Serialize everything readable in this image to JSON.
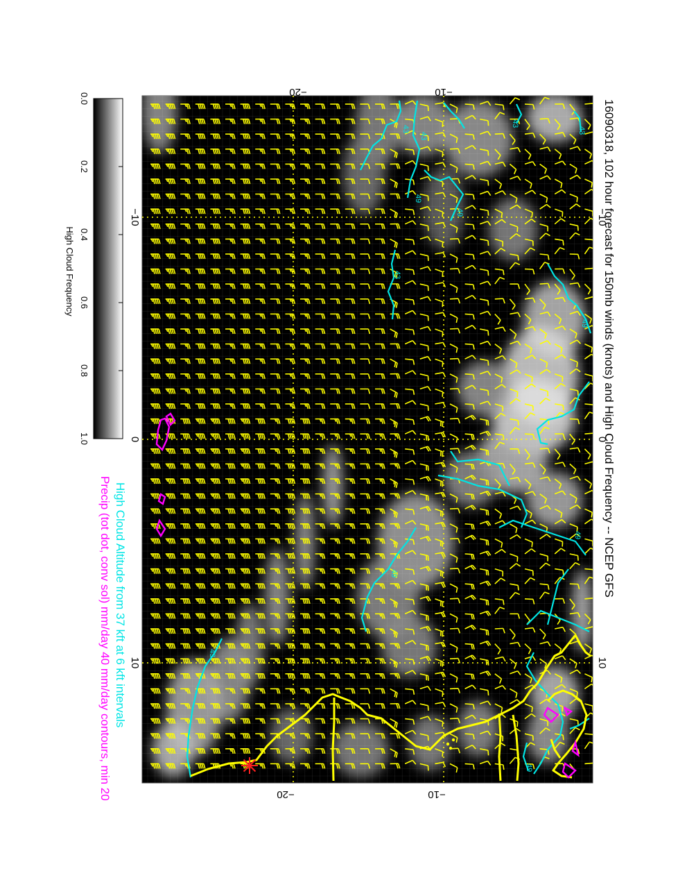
{
  "title": "16090318, 102 hour forecast for 150mb winds (knots) and High Cloud Frequency -- NCEP GFS",
  "legend": {
    "altitude_text": "High Cloud Altitude from 37 kft at 6 kft intervals",
    "precip_text": "Precip (tot dot, conv sol) mm/day 40 mm/day contours, min 20"
  },
  "colorbar": {
    "label": "High Cloud Frequency",
    "ticks": [
      "0.0",
      "0.2",
      "0.4",
      "0.6",
      "0.8",
      "1.0"
    ],
    "values": [
      0.0,
      0.2,
      0.4,
      0.6,
      0.8,
      1.0
    ]
  },
  "axes": {
    "top_ticks": [
      "−20",
      "−10"
    ],
    "bottom_ticks": [
      "−20",
      "−10"
    ],
    "left_ticks": [
      "−10",
      "0",
      "10"
    ],
    "right_ticks": [
      "−10",
      "0",
      "10"
    ]
  },
  "contour_labels": [
    "43",
    "43",
    "49",
    "43",
    "49",
    "49",
    "43",
    "43",
    "49",
    "49",
    "49",
    "43"
  ],
  "colors": {
    "background": "#000000",
    "wind_barbs": "#ffff00",
    "coastline": "#ffff00",
    "altitude_contours": "#00e5e5",
    "precip_contours": "#ff00ff",
    "marker": "#ff2020",
    "gridlines": "#ffff00",
    "title_text": "#000000",
    "altitude_text": "#00e5e5",
    "precip_text": "#ff00ff"
  }
}
